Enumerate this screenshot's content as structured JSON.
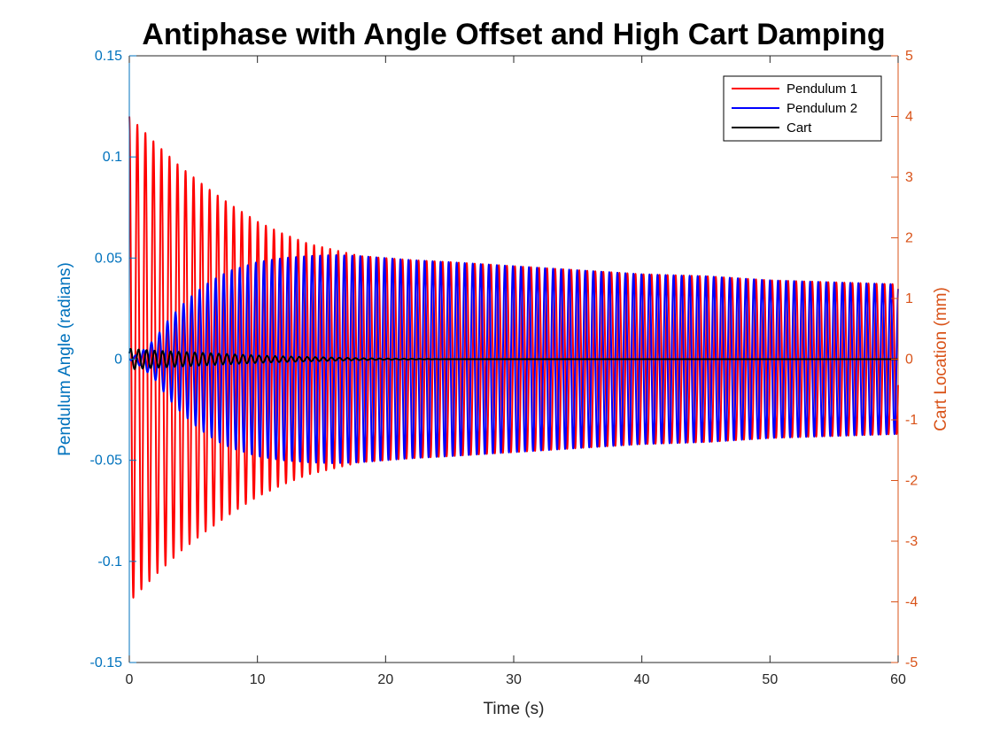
{
  "chart_data": {
    "type": "line",
    "title": "Antiphase with Angle Offset and High Cart Damping",
    "xlabel": "Time (s)",
    "ylabel_left": "Pendulum Angle (radians)",
    "ylabel_right": "Cart Location (mm)",
    "xlim": [
      0,
      60
    ],
    "ylim_left": [
      -0.15,
      0.15
    ],
    "ylim_right": [
      -5,
      5
    ],
    "x_ticks": [
      "0",
      "10",
      "20",
      "30",
      "40",
      "50",
      "60"
    ],
    "y_left_ticks": [
      "-0.15",
      "-0.1",
      "-0.05",
      "0",
      "0.05",
      "0.1",
      "0.15"
    ],
    "y_right_ticks": [
      "-5",
      "-4",
      "-3",
      "-2",
      "-1",
      "0",
      "1",
      "2",
      "3",
      "4",
      "5"
    ],
    "grid": false,
    "legend_position": "top-right",
    "colors": {
      "left_axis": "#0072BD",
      "right_axis": "#D95319",
      "pendulum1": "#FF0000",
      "pendulum2": "#0000FF",
      "cart": "#000000"
    },
    "oscillation_period_s": 0.627,
    "series": [
      {
        "name": "Pendulum 1",
        "axis": "left",
        "color": "#FF0000",
        "envelope": {
          "t": [
            0,
            2,
            4,
            6,
            8,
            10,
            12,
            14,
            16,
            18,
            20,
            22,
            25,
            30,
            35,
            40,
            45,
            50,
            55,
            60
          ],
          "amplitude": [
            0.12,
            0.107,
            0.095,
            0.085,
            0.076,
            0.068,
            0.062,
            0.057,
            0.054,
            0.051,
            0.05,
            0.049,
            0.048,
            0.046,
            0.044,
            0.042,
            0.041,
            0.039,
            0.038,
            0.037
          ]
        }
      },
      {
        "name": "Pendulum 2",
        "axis": "left",
        "color": "#0000FF",
        "envelope": {
          "t": [
            0,
            1,
            2,
            3,
            4,
            5,
            6,
            7,
            8,
            10,
            12,
            14,
            16,
            18,
            20,
            22,
            25,
            30,
            35,
            40,
            45,
            50,
            55,
            60
          ],
          "amplitude": [
            0,
            0.004,
            0.01,
            0.019,
            0.026,
            0.032,
            0.037,
            0.041,
            0.044,
            0.048,
            0.05,
            0.051,
            0.0515,
            0.051,
            0.05,
            0.049,
            0.048,
            0.046,
            0.044,
            0.042,
            0.041,
            0.039,
            0.038,
            0.037
          ]
        }
      },
      {
        "name": "Cart",
        "axis": "right",
        "color": "#000000",
        "envelope": {
          "t": [
            0,
            2,
            4,
            6,
            8,
            10,
            12,
            15,
            18,
            20,
            25,
            60
          ],
          "amplitude": [
            0.17,
            0.14,
            0.12,
            0.1,
            0.08,
            0.06,
            0.045,
            0.03,
            0.015,
            0.01,
            0,
            0
          ]
        }
      }
    ]
  }
}
